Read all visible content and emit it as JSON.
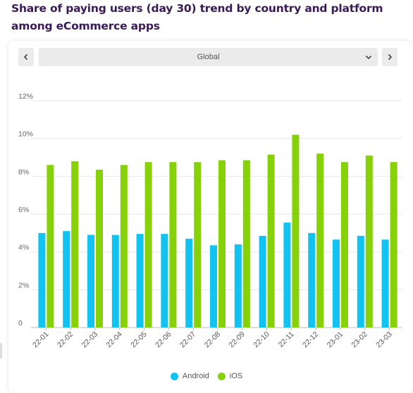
{
  "title": "Share of paying users (day 30) trend by country and platform among eCommerce apps",
  "selector": {
    "value": "Global",
    "prev_icon": "chevron-left-icon",
    "next_icon": "chevron-right-icon",
    "dropdown_icon": "chevron-down-icon"
  },
  "colors": {
    "android": "#12c2f0",
    "ios": "#86d10a",
    "title": "#3a1a57"
  },
  "chart_data": {
    "type": "bar",
    "categories": [
      "22-01",
      "22-02",
      "22-03",
      "22-04",
      "22-05",
      "22-06",
      "22-07",
      "22-08",
      "22-09",
      "22-10",
      "22-11",
      "22-12",
      "23-01",
      "23-02",
      "23-03"
    ],
    "series": [
      {
        "name": "Android",
        "values": [
          5.0,
          5.1,
          4.9,
          4.9,
          4.95,
          4.95,
          4.7,
          4.35,
          4.4,
          4.85,
          5.55,
          5.0,
          4.65,
          4.85,
          4.65
        ]
      },
      {
        "name": "iOS",
        "values": [
          8.6,
          8.8,
          8.35,
          8.6,
          8.75,
          8.75,
          8.75,
          8.85,
          8.85,
          9.15,
          10.2,
          9.2,
          8.75,
          9.1,
          8.75
        ]
      }
    ],
    "yticks": [
      "0",
      "2%",
      "4%",
      "6%",
      "8%",
      "10%",
      "12%"
    ],
    "ylim": [
      0,
      12
    ],
    "grid": true,
    "legend": "bottom-center"
  }
}
